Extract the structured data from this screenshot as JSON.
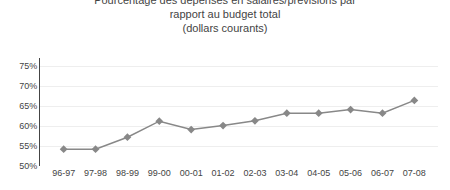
{
  "chart_data": {
    "type": "line",
    "title": "Pourcentage des dépenses en salaires/prévisions par\nrapport au budget total\n(dollars courants)",
    "categories": [
      "96-97",
      "97-98",
      "98-99",
      "99-00",
      "00-01",
      "01-02",
      "02-03",
      "03-04",
      "04-05",
      "05-06",
      "06-07",
      "07-08"
    ],
    "values": [
      0.542,
      0.542,
      0.572,
      0.612,
      0.591,
      0.601,
      0.613,
      0.632,
      0.632,
      0.641,
      0.632,
      0.664
    ],
    "color": "#888888",
    "marker": "diamond",
    "ylim": [
      0.5,
      0.77
    ],
    "yticks": [
      {
        "value": 0.5,
        "label": "50%"
      },
      {
        "value": 0.55,
        "label": "55%"
      },
      {
        "value": 0.6,
        "label": "60%"
      },
      {
        "value": 0.65,
        "label": "65%"
      },
      {
        "value": 0.7,
        "label": "70%"
      },
      {
        "value": 0.75,
        "label": "75%"
      }
    ],
    "grid": true
  }
}
